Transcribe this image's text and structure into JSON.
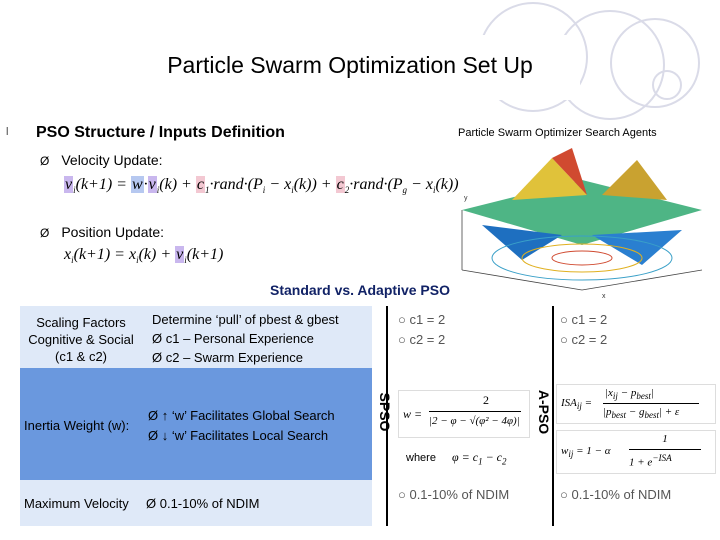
{
  "header": {
    "title": "Particle Swarm Optimization Set Up"
  },
  "section": {
    "bullet": "l",
    "heading": "PSO Structure / Inputs Definition",
    "plot_label": "Particle Swarm Optimizer Search Agents"
  },
  "velocity": {
    "arrow": "Ø",
    "label": "Velocity Update:"
  },
  "position": {
    "arrow": "Ø",
    "label": "Position Update:"
  },
  "comparison": {
    "title": "Standard vs. Adaptive PSO",
    "spso_label": "SPSO",
    "apso_label": "A-PSO",
    "rows": {
      "scaling": {
        "label_line1": "Scaling Factors",
        "label_line2": "Cognitive & Social",
        "label_line3": "(c1 & c2)",
        "desc_line1": "Determine ‘pull’ of pbest & gbest",
        "desc_line2": "c1 – Personal Experience",
        "desc_line3": "c2 – Swarm Experience",
        "spso_c1": "c1 = 2",
        "spso_c2": "c2 = 2",
        "apso_c1": "c1 = 2",
        "apso_c2": "c2 = 2"
      },
      "inertia": {
        "label": "Inertia Weight (w):",
        "desc_line1": "↑ ‘w’ Facilitates Global Search",
        "desc_line2": "↓ ‘w’ Facilitates Local Search",
        "where": "where"
      },
      "velocity_max": {
        "label": "Maximum Velocity",
        "desc": "0.1-10% of NDIM",
        "spso_value": "0.1-10% of NDIM",
        "apso_value": "0.1-10% of NDIM"
      }
    }
  },
  "colors": {
    "blue_cell": "#6a98de",
    "light_cell": "#dfe9f8",
    "circle": "#dadbe8",
    "title_blue": "#112266"
  }
}
